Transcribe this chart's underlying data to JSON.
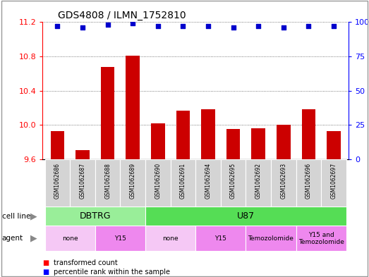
{
  "title": "GDS4808 / ILMN_1752810",
  "samples": [
    "GSM1062686",
    "GSM1062687",
    "GSM1062688",
    "GSM1062689",
    "GSM1062690",
    "GSM1062691",
    "GSM1062694",
    "GSM1062695",
    "GSM1062692",
    "GSM1062693",
    "GSM1062696",
    "GSM1062697"
  ],
  "bar_values": [
    9.93,
    9.71,
    10.68,
    10.81,
    10.02,
    10.17,
    10.18,
    9.95,
    9.96,
    10.0,
    10.18,
    9.93
  ],
  "percentile_values": [
    97,
    96,
    98,
    99,
    97,
    97,
    97,
    96,
    97,
    96,
    97,
    97
  ],
  "ylim_left": [
    9.6,
    11.2
  ],
  "ylim_right": [
    0,
    100
  ],
  "yticks_left": [
    9.6,
    10.0,
    10.4,
    10.8,
    11.2
  ],
  "yticks_right": [
    0,
    25,
    50,
    75,
    100
  ],
  "bar_color": "#cc0000",
  "dot_color": "#0000cc",
  "cell_line_groups": [
    {
      "label": "DBTRG",
      "start": 0,
      "end": 3,
      "color": "#99ee99"
    },
    {
      "label": "U87",
      "start": 4,
      "end": 11,
      "color": "#55dd55"
    }
  ],
  "agent_groups": [
    {
      "label": "none",
      "start": 0,
      "end": 1,
      "color": "#f5c8f5"
    },
    {
      "label": "Y15",
      "start": 2,
      "end": 3,
      "color": "#ee88ee"
    },
    {
      "label": "none",
      "start": 4,
      "end": 5,
      "color": "#f5c8f5"
    },
    {
      "label": "Y15",
      "start": 6,
      "end": 7,
      "color": "#ee88ee"
    },
    {
      "label": "Temozolomide",
      "start": 8,
      "end": 9,
      "color": "#ee88ee"
    },
    {
      "label": "Y15 and\nTemozolomide",
      "start": 10,
      "end": 11,
      "color": "#ee88ee"
    }
  ],
  "legend_red_label": "transformed count",
  "legend_blue_label": "percentile rank within the sample",
  "background_color": "#ffffff",
  "grid_color": "#555555",
  "bar_width": 0.55,
  "dot_size": 18
}
